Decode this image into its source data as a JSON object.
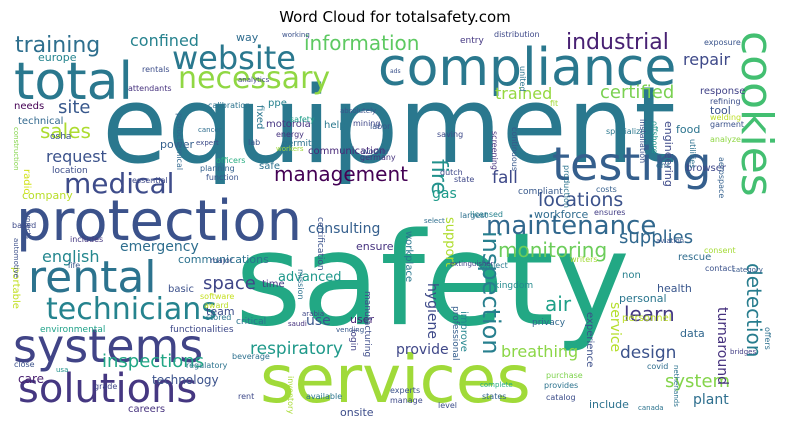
{
  "title": "Word Cloud for totalsafety.com",
  "words": [
    {
      "text": "equipment",
      "color": "#2a788e"
    },
    {
      "text": "safety",
      "color": "#22a884"
    },
    {
      "text": "services",
      "color": "#a0da39"
    },
    {
      "text": "protection",
      "color": "#3b528b"
    },
    {
      "text": "total",
      "color": "#2a788e"
    },
    {
      "text": "compliance",
      "color": "#2a788e"
    },
    {
      "text": "cookies",
      "color": "#43bf71"
    },
    {
      "text": "testing",
      "color": "#355f8d"
    },
    {
      "text": "rental",
      "color": "#2c738e"
    },
    {
      "text": "systems",
      "color": "#414487"
    },
    {
      "text": "solutions",
      "color": "#453781"
    },
    {
      "text": "website",
      "color": "#2a788e"
    },
    {
      "text": "necessary",
      "color": "#90d743"
    },
    {
      "text": "technicians",
      "color": "#25838e"
    },
    {
      "text": "medical",
      "color": "#3e4c8a"
    },
    {
      "text": "maintenance",
      "color": "#31688e"
    },
    {
      "text": "training",
      "color": "#2e6f8e"
    },
    {
      "text": "information",
      "color": "#5ec962"
    },
    {
      "text": "industrial",
      "color": "#482173"
    },
    {
      "text": "inspection",
      "color": "#277f8e"
    },
    {
      "text": "management",
      "color": "#440154"
    },
    {
      "text": "fire",
      "color": "#21918c"
    },
    {
      "text": "detection",
      "color": "#287d8e"
    },
    {
      "text": "monitoring",
      "color": "#6ccd5a"
    },
    {
      "text": "locations",
      "color": "#3b528b"
    },
    {
      "text": "supplies",
      "color": "#31688e"
    },
    {
      "text": "learn",
      "color": "#443983"
    },
    {
      "text": "system",
      "color": "#84d44b"
    },
    {
      "text": "inspections",
      "color": "#21a685"
    },
    {
      "text": "respiratory",
      "color": "#1f998a"
    },
    {
      "text": "request",
      "color": "#3b528b"
    },
    {
      "text": "sales",
      "color": "#addc30"
    },
    {
      "text": "certified",
      "color": "#7ad151"
    },
    {
      "text": "repair",
      "color": "#3e4989"
    },
    {
      "text": "trained",
      "color": "#95d840"
    },
    {
      "text": "site",
      "color": "#38588c"
    },
    {
      "text": "confined",
      "color": "#26828e"
    },
    {
      "text": "space",
      "color": "#404688"
    },
    {
      "text": "english",
      "color": "#24878e"
    },
    {
      "text": "emergency",
      "color": "#2e6e8e"
    },
    {
      "text": "air",
      "color": "#1fa088"
    },
    {
      "text": "breathing",
      "color": "#8bd646"
    },
    {
      "text": "design",
      "color": "#3b528b"
    },
    {
      "text": "service",
      "color": "#b5de2b"
    },
    {
      "text": "fall",
      "color": "#3e4989"
    },
    {
      "text": "gas",
      "color": "#1e9b8a"
    },
    {
      "text": "care",
      "color": "#481f70"
    },
    {
      "text": "provide",
      "color": "#3f4788"
    },
    {
      "text": "turnaround",
      "color": "#46327e"
    },
    {
      "text": "hygiene",
      "color": "#3e4a89"
    },
    {
      "text": "support",
      "color": "#b0dd2f"
    },
    {
      "text": "consulting",
      "color": "#355f8d"
    },
    {
      "text": "plant",
      "color": "#2e6f8e"
    },
    {
      "text": "advanced",
      "color": "#1f988b"
    },
    {
      "text": "use",
      "color": "#39568c"
    },
    {
      "text": "technology",
      "color": "#3b528b"
    },
    {
      "text": "user",
      "color": "#482576"
    },
    {
      "text": "way",
      "color": "#2f6c8e"
    },
    {
      "text": "team",
      "color": "#3d4e8a"
    },
    {
      "text": "ppe",
      "color": "#26818e"
    },
    {
      "text": "help",
      "color": "#2a788e"
    },
    {
      "text": "safe",
      "color": "#2d718e"
    },
    {
      "text": "health",
      "color": "#39568c"
    },
    {
      "text": "onsite",
      "color": "#3d4d8a"
    },
    {
      "text": "include",
      "color": "#2c728e"
    },
    {
      "text": "power",
      "color": "#34608d"
    },
    {
      "text": "entry",
      "color": "#453882"
    },
    {
      "text": "workforce",
      "color": "#2f6b8e"
    },
    {
      "text": "motorola",
      "color": "#453581"
    },
    {
      "text": "engineering",
      "color": "#3e4a89"
    },
    {
      "text": "food",
      "color": "#2b748e"
    },
    {
      "text": "tool",
      "color": "#3a548c"
    },
    {
      "text": "data",
      "color": "#31678e"
    },
    {
      "text": "personal",
      "color": "#2a768e"
    },
    {
      "text": "experience",
      "color": "#3c4f8a"
    },
    {
      "text": "improve",
      "color": "#24868e"
    },
    {
      "text": "ensure",
      "color": "#46337f"
    },
    {
      "text": "time",
      "color": "#453781"
    },
    {
      "text": "rescue",
      "color": "#2f6c8e"
    },
    {
      "text": "response",
      "color": "#414287"
    },
    {
      "text": "browser",
      "color": "#3f4889"
    },
    {
      "text": "compliant",
      "color": "#38598c"
    },
    {
      "text": "communications",
      "color": "#2c728e"
    },
    {
      "text": "communication",
      "color": "#482878"
    },
    {
      "text": "fixed",
      "color": "#2a768e"
    },
    {
      "text": "europe",
      "color": "#25848e"
    },
    {
      "text": "needs",
      "color": "#440154"
    },
    {
      "text": "technical",
      "color": "#31688e"
    },
    {
      "text": "careers",
      "color": "#46327e"
    },
    {
      "text": "mining",
      "color": "#3f4788"
    },
    {
      "text": "basic",
      "color": "#3c508b"
    },
    {
      "text": "company",
      "color": "#b8de29"
    },
    {
      "text": "portable",
      "color": "#c2df23"
    },
    {
      "text": "personnel",
      "color": "#bddf26"
    },
    {
      "text": "non",
      "color": "#27808e"
    },
    {
      "text": "workplace",
      "color": "#2a778e"
    },
    {
      "text": "certification",
      "color": "#3b528b"
    },
    {
      "text": "permit",
      "color": "#2c728e"
    },
    {
      "text": "energy",
      "color": "#46337f"
    },
    {
      "text": "lab",
      "color": "#3a548c"
    },
    {
      "text": "radio",
      "color": "#d2e21b"
    },
    {
      "text": "location",
      "color": "#3d4e8a"
    },
    {
      "text": "osha",
      "color": "#3a548c"
    },
    {
      "text": "safety",
      "color": "#1f9e89"
    },
    {
      "text": "functionalities",
      "color": "#3e4989"
    },
    {
      "text": "environmental",
      "color": "#1fa188"
    },
    {
      "text": "critical",
      "color": "#2c728e"
    },
    {
      "text": "login",
      "color": "#414287"
    },
    {
      "text": "mission",
      "color": "#2d718e"
    },
    {
      "text": "manufacturing",
      "color": "#3e4c8a"
    },
    {
      "text": "professional",
      "color": "#355e8d"
    },
    {
      "text": "kingdom",
      "color": "#238a8d"
    },
    {
      "text": "privacy",
      "color": "#31688e"
    },
    {
      "text": "project",
      "color": "#29798e"
    },
    {
      "text": "writers",
      "color": "#a2da37"
    },
    {
      "text": "consent",
      "color": "#a5db36"
    },
    {
      "text": "contact",
      "color": "#3b528b"
    },
    {
      "text": "offers",
      "color": "#2d708e"
    },
    {
      "text": "covid",
      "color": "#2e6d8e"
    },
    {
      "text": "purchase",
      "color": "#7fd34e"
    },
    {
      "text": "provides",
      "color": "#2c738e"
    },
    {
      "text": "catalog",
      "color": "#3d4e8a"
    },
    {
      "text": "complete",
      "color": "#27ad81"
    },
    {
      "text": "states",
      "color": "#33638d"
    },
    {
      "text": "level",
      "color": "#3c4f8a"
    },
    {
      "text": "experts",
      "color": "#3b528b"
    },
    {
      "text": "manage",
      "color": "#3e4a89"
    },
    {
      "text": "available",
      "color": "#2b758e"
    },
    {
      "text": "rent",
      "color": "#3e4989"
    },
    {
      "text": "inventory",
      "color": "#a8db34"
    },
    {
      "text": "beverage",
      "color": "#2d708e"
    },
    {
      "text": "grade",
      "color": "#404688"
    },
    {
      "text": "close",
      "color": "#3b528b"
    },
    {
      "text": "usa",
      "color": "#20928c"
    },
    {
      "text": "regulatory",
      "color": "#2c738e"
    },
    {
      "text": "software",
      "color": "#c5e021"
    },
    {
      "text": "award",
      "color": "#bade28"
    },
    {
      "text": "stored",
      "color": "#2a778e"
    },
    {
      "text": "major",
      "color": "#3d4d8a"
    },
    {
      "text": "life",
      "color": "#38598c"
    },
    {
      "text": "includes",
      "color": "#453781"
    },
    {
      "text": "planning",
      "color": "#34618d"
    },
    {
      "text": "officers",
      "color": "#27ad81"
    },
    {
      "text": "function",
      "color": "#3a548c"
    },
    {
      "text": "germany",
      "color": "#46327e"
    },
    {
      "text": "state",
      "color": "#3f4889"
    },
    {
      "text": "costs",
      "color": "#355f8d"
    },
    {
      "text": "ensures",
      "color": "#433e85"
    },
    {
      "text": "licensed",
      "color": "#26828e"
    },
    {
      "text": "largest",
      "color": "#2d708e"
    },
    {
      "text": "dutch",
      "color": "#3f4788"
    },
    {
      "text": "select",
      "color": "#2e6e8e"
    },
    {
      "text": "aviation",
      "color": "#3a548c"
    },
    {
      "text": "netherlands",
      "color": "#2c738e"
    },
    {
      "text": "bridges",
      "color": "#433e85"
    },
    {
      "text": "category",
      "color": "#38598c"
    },
    {
      "text": "aerospace",
      "color": "#34608d"
    },
    {
      "text": "ehs",
      "color": "#2e6f8e"
    },
    {
      "text": "utilities",
      "color": "#2d718e"
    },
    {
      "text": "analyze",
      "color": "#8fd744"
    },
    {
      "text": "garment",
      "color": "#3b528b"
    },
    {
      "text": "welding",
      "color": "#bddf26"
    },
    {
      "text": "refining",
      "color": "#3c4f8a"
    },
    {
      "text": "specialized",
      "color": "#2a778e"
    },
    {
      "text": "offshore",
      "color": "#1f958b"
    },
    {
      "text": "installation",
      "color": "#3b528b"
    },
    {
      "text": "production",
      "color": "#2c738e"
    },
    {
      "text": "continuous",
      "color": "#38598c"
    },
    {
      "text": "screening",
      "color": "#46327e"
    },
    {
      "text": "saving",
      "color": "#3e4a89"
    },
    {
      "text": "labor",
      "color": "#39568c"
    },
    {
      "text": "absolutely",
      "color": "#3a548c"
    },
    {
      "text": "worker",
      "color": "#3b528b"
    },
    {
      "text": "workers",
      "color": "#a0da39"
    },
    {
      "text": "cancer",
      "color": "#2e6d8e"
    },
    {
      "text": "expert",
      "color": "#3e4c8a"
    },
    {
      "text": "petrochemical",
      "color": "#31688e"
    },
    {
      "text": "essential",
      "color": "#3e4a89"
    },
    {
      "text": "calibration",
      "color": "#2c738e"
    },
    {
      "text": "analytics",
      "color": "#404688"
    },
    {
      "text": "working",
      "color": "#3b528b"
    },
    {
      "text": "attendants",
      "color": "#46327e"
    },
    {
      "text": "rentals",
      "color": "#3d4e8a"
    },
    {
      "text": "distribution",
      "color": "#3e4989"
    },
    {
      "text": "united",
      "color": "#2c738e"
    },
    {
      "text": "fit",
      "color": "#a2da37"
    },
    {
      "text": "exposure",
      "color": "#3a548c"
    },
    {
      "text": "ads",
      "color": "#3b528b"
    },
    {
      "text": "arabia",
      "color": "#3f4788"
    },
    {
      "text": "saudi",
      "color": "#46327e"
    },
    {
      "text": "construction",
      "color": "#84d44b"
    },
    {
      "text": "based",
      "color": "#3e4a89"
    },
    {
      "text": "automotive",
      "color": "#3c4f8a"
    },
    {
      "text": "projects",
      "color": "#3d4e8a"
    },
    {
      "text": "vending",
      "color": "#38598c"
    },
    {
      "text": "canada",
      "color": "#2c738e"
    },
    {
      "text": "extinguisher",
      "color": "#404688"
    }
  ]
}
